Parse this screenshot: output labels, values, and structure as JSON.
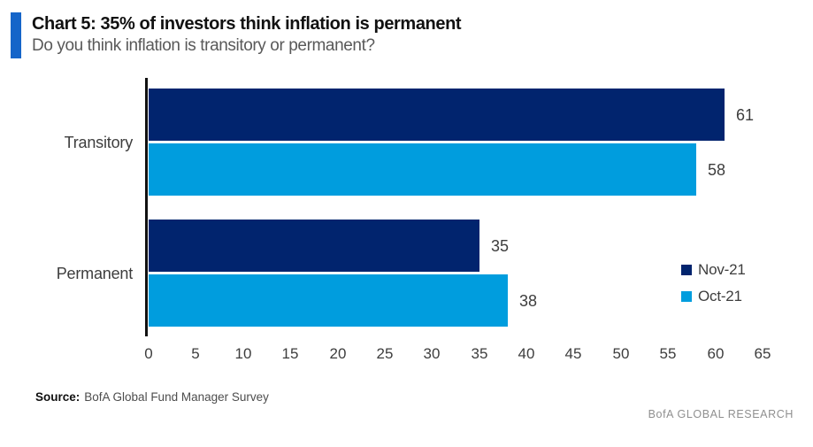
{
  "header": {
    "title": "Chart 5: 35% of investors think inflation is permanent",
    "subtitle": "Do you think inflation is transitory or permanent?",
    "accent_color": "#1565c9"
  },
  "chart_data": {
    "type": "bar",
    "orientation": "horizontal",
    "categories": [
      "Transitory",
      "Permanent"
    ],
    "series": [
      {
        "name": "Nov-21",
        "color": "#01246e",
        "values": [
          61,
          35
        ]
      },
      {
        "name": "Oct-21",
        "color": "#009dde",
        "values": [
          58,
          38
        ]
      }
    ],
    "xlim": [
      0,
      65
    ],
    "xticks": [
      0,
      5,
      10,
      15,
      20,
      25,
      30,
      35,
      40,
      45,
      50,
      55,
      60,
      65
    ],
    "value_labels": true,
    "grid": false,
    "legend_position": "right"
  },
  "source": {
    "label": "Source:",
    "text": "BofA Global Fund Manager Survey"
  },
  "footer": {
    "text": "BofA GLOBAL RESEARCH"
  }
}
